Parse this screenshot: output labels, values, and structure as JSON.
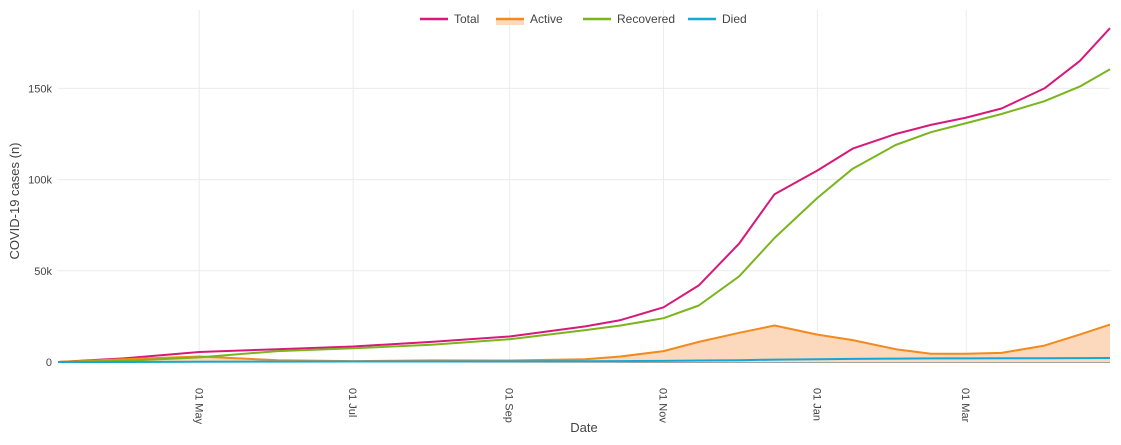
{
  "chart_data": {
    "type": "line",
    "title": "",
    "xlabel": "Date",
    "ylabel": "COVID-19 cases (n)",
    "grid": true,
    "legend_position": "top-center",
    "y_ticks": [
      {
        "value": 0,
        "label": "0"
      },
      {
        "value": 50000,
        "label": "50k"
      },
      {
        "value": 100000,
        "label": "100k"
      },
      {
        "value": 150000,
        "label": "150k"
      }
    ],
    "ylim": [
      0,
      193000
    ],
    "x_ticks": [
      {
        "date": "2020-05-01",
        "label": "01 May"
      },
      {
        "date": "2020-07-01",
        "label": "01 Jul"
      },
      {
        "date": "2020-09-01",
        "label": "01 Sep"
      },
      {
        "date": "2020-11-01",
        "label": "01 Nov"
      },
      {
        "date": "2021-01-01",
        "label": "01 Jan"
      },
      {
        "date": "2021-03-01",
        "label": "01 Mar"
      }
    ],
    "xlim": [
      "2020-03-06",
      "2021-04-27"
    ],
    "x": [
      "2020-03-06",
      "2020-04-01",
      "2020-05-01",
      "2020-06-01",
      "2020-07-01",
      "2020-08-01",
      "2020-09-01",
      "2020-10-01",
      "2020-10-15",
      "2020-11-01",
      "2020-11-15",
      "2020-12-01",
      "2020-12-15",
      "2021-01-01",
      "2021-01-15",
      "2021-02-01",
      "2021-02-15",
      "2021-03-01",
      "2021-03-15",
      "2021-04-01",
      "2021-04-15",
      "2021-04-27"
    ],
    "series": [
      {
        "name": "Total",
        "color": "#d6197a",
        "fill": false,
        "values": [
          0,
          2000,
          5500,
          7000,
          8500,
          11000,
          14000,
          19500,
          23000,
          30000,
          42000,
          65000,
          92000,
          105000,
          117000,
          125000,
          130000,
          134000,
          139000,
          150000,
          165000,
          183000
        ]
      },
      {
        "name": "Active",
        "color": "#f28a1e",
        "fill": true,
        "fill_color": "#fcd9bc",
        "values": [
          0,
          1500,
          3000,
          1000,
          500,
          900,
          800,
          1500,
          3000,
          6000,
          11000,
          16000,
          20000,
          15000,
          12000,
          7000,
          4500,
          4500,
          5000,
          9000,
          15000,
          20500
        ]
      },
      {
        "name": "Recovered",
        "color": "#7ab51d",
        "fill": false,
        "values": [
          0,
          600,
          2500,
          6000,
          7500,
          9500,
          12500,
          17500,
          20000,
          24000,
          31000,
          47000,
          68000,
          90000,
          106000,
          119000,
          126000,
          131000,
          136000,
          143000,
          151000,
          160500
        ]
      },
      {
        "name": "Died",
        "color": "#14a8d6",
        "fill": false,
        "values": [
          0,
          20,
          100,
          200,
          250,
          300,
          350,
          400,
          500,
          600,
          800,
          1000,
          1300,
          1500,
          1700,
          1850,
          1950,
          2000,
          2050,
          2100,
          2150,
          2200
        ]
      }
    ]
  }
}
